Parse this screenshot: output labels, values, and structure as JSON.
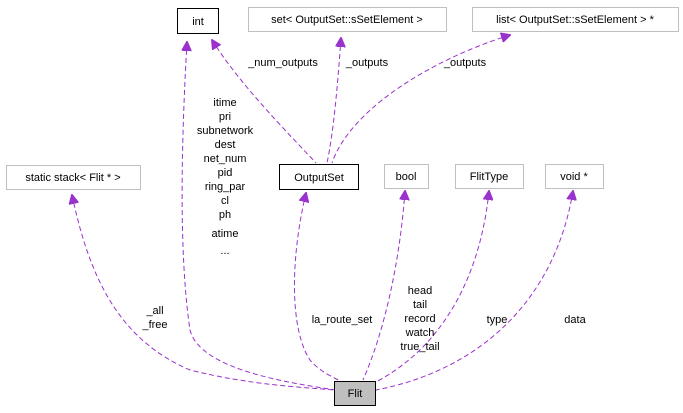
{
  "nodes": {
    "int": "int",
    "set_output": "set< OutputSet::sSetElement >",
    "list_output": "list< OutputSet::sSetElement > *",
    "static_stack": "static stack< Flit * >",
    "outputset": "OutputSet",
    "bool": "bool",
    "flittype": "FlitType",
    "voidptr": "void *",
    "flit": "Flit"
  },
  "edge_labels": {
    "num_outputs": "_num_outputs",
    "outputs_set": "_outputs",
    "outputs_list": "_outputs",
    "int_members": [
      "itime",
      "pri",
      "subnetwork",
      "dest",
      "net_num",
      "pid",
      "ring_par",
      "cl",
      "ph",
      "atime",
      "..."
    ],
    "all_free": [
      "_all",
      "_free"
    ],
    "la_route_set": "la_route_set",
    "bool_members": [
      "head",
      "tail",
      "record",
      "watch",
      "true_tail"
    ],
    "type": "type",
    "data": "data"
  },
  "colors": {
    "edge": "#9a32cd",
    "gray_border": "#bfbfbf",
    "focus_fill": "#bfbfbf"
  }
}
